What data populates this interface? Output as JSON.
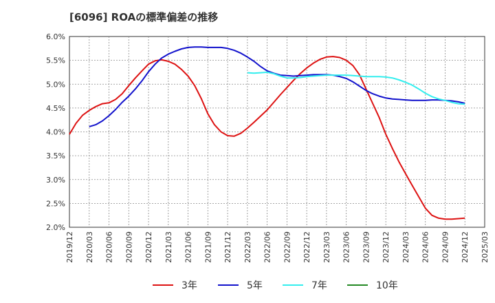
{
  "chart_data": {
    "type": "line",
    "title": "[6096]  ROAの標準偏差の推移",
    "xlabel": "",
    "ylabel": "",
    "ylim": [
      2.0,
      6.0
    ],
    "yticks": [
      "6.0%",
      "5.5%",
      "5.0%",
      "4.5%",
      "4.0%",
      "3.5%",
      "3.0%",
      "2.5%",
      "2.0%"
    ],
    "xticks": [
      "2019/12",
      "2020/03",
      "2020/06",
      "2020/09",
      "2020/12",
      "2021/03",
      "2021/06",
      "2021/09",
      "2021/12",
      "2022/03",
      "2022/06",
      "2022/09",
      "2022/12",
      "2023/03",
      "2023/06",
      "2023/09",
      "2023/12",
      "2024/03",
      "2024/06",
      "2024/09",
      "2024/12",
      "2025/03"
    ],
    "grid": true,
    "legend_position": "bottom",
    "series": [
      {
        "name": "3年",
        "color": "#dd1111",
        "points": [
          [
            "2019/12",
            3.95
          ],
          [
            "2020/01",
            4.18
          ],
          [
            "2020/02",
            4.35
          ],
          [
            "2020/03",
            4.45
          ],
          [
            "2020/04",
            4.53
          ],
          [
            "2020/05",
            4.59
          ],
          [
            "2020/06",
            4.61
          ],
          [
            "2020/07",
            4.68
          ],
          [
            "2020/08",
            4.8
          ],
          [
            "2020/09",
            4.97
          ],
          [
            "2020/10",
            5.13
          ],
          [
            "2020/11",
            5.28
          ],
          [
            "2020/12",
            5.42
          ],
          [
            "2021/01",
            5.49
          ],
          [
            "2021/02",
            5.51
          ],
          [
            "2021/03",
            5.48
          ],
          [
            "2021/04",
            5.42
          ],
          [
            "2021/05",
            5.31
          ],
          [
            "2021/06",
            5.17
          ],
          [
            "2021/07",
            4.97
          ],
          [
            "2021/08",
            4.7
          ],
          [
            "2021/09",
            4.38
          ],
          [
            "2021/10",
            4.15
          ],
          [
            "2021/11",
            4.0
          ],
          [
            "2021/12",
            3.92
          ],
          [
            "2022/01",
            3.91
          ],
          [
            "2022/02",
            3.97
          ],
          [
            "2022/03",
            4.08
          ],
          [
            "2022/04",
            4.2
          ],
          [
            "2022/05",
            4.33
          ],
          [
            "2022/06",
            4.46
          ],
          [
            "2022/07",
            4.62
          ],
          [
            "2022/08",
            4.78
          ],
          [
            "2022/09",
            4.93
          ],
          [
            "2022/10",
            5.08
          ],
          [
            "2022/11",
            5.22
          ],
          [
            "2022/12",
            5.34
          ],
          [
            "2023/01",
            5.44
          ],
          [
            "2023/02",
            5.52
          ],
          [
            "2023/03",
            5.57
          ],
          [
            "2023/04",
            5.58
          ],
          [
            "2023/05",
            5.56
          ],
          [
            "2023/06",
            5.5
          ],
          [
            "2023/07",
            5.39
          ],
          [
            "2023/08",
            5.2
          ],
          [
            "2023/09",
            4.9
          ],
          [
            "2023/10",
            4.6
          ],
          [
            "2023/11",
            4.3
          ],
          [
            "2023/12",
            3.95
          ],
          [
            "2024/01",
            3.65
          ],
          [
            "2024/02",
            3.37
          ],
          [
            "2024/03",
            3.12
          ],
          [
            "2024/04",
            2.88
          ],
          [
            "2024/05",
            2.64
          ],
          [
            "2024/06",
            2.4
          ],
          [
            "2024/07",
            2.25
          ],
          [
            "2024/08",
            2.19
          ],
          [
            "2024/09",
            2.17
          ],
          [
            "2024/10",
            2.17
          ],
          [
            "2024/11",
            2.18
          ],
          [
            "2024/12",
            2.19
          ]
        ]
      },
      {
        "name": "5年",
        "color": "#1111cc",
        "points": [
          [
            "2020/03",
            4.11
          ],
          [
            "2020/04",
            4.15
          ],
          [
            "2020/05",
            4.23
          ],
          [
            "2020/06",
            4.34
          ],
          [
            "2020/07",
            4.47
          ],
          [
            "2020/08",
            4.62
          ],
          [
            "2020/09",
            4.75
          ],
          [
            "2020/10",
            4.9
          ],
          [
            "2020/11",
            5.07
          ],
          [
            "2020/12",
            5.26
          ],
          [
            "2021/01",
            5.42
          ],
          [
            "2021/02",
            5.55
          ],
          [
            "2021/03",
            5.63
          ],
          [
            "2021/04",
            5.69
          ],
          [
            "2021/05",
            5.74
          ],
          [
            "2021/06",
            5.77
          ],
          [
            "2021/07",
            5.78
          ],
          [
            "2021/08",
            5.78
          ],
          [
            "2021/09",
            5.77
          ],
          [
            "2021/10",
            5.77
          ],
          [
            "2021/11",
            5.77
          ],
          [
            "2021/12",
            5.75
          ],
          [
            "2022/01",
            5.71
          ],
          [
            "2022/02",
            5.65
          ],
          [
            "2022/03",
            5.57
          ],
          [
            "2022/04",
            5.48
          ],
          [
            "2022/05",
            5.37
          ],
          [
            "2022/06",
            5.28
          ],
          [
            "2022/07",
            5.23
          ],
          [
            "2022/08",
            5.19
          ],
          [
            "2022/09",
            5.18
          ],
          [
            "2022/10",
            5.17
          ],
          [
            "2022/11",
            5.18
          ],
          [
            "2022/12",
            5.19
          ],
          [
            "2023/01",
            5.2
          ],
          [
            "2023/02",
            5.2
          ],
          [
            "2023/03",
            5.2
          ],
          [
            "2023/04",
            5.19
          ],
          [
            "2023/05",
            5.16
          ],
          [
            "2023/06",
            5.12
          ],
          [
            "2023/07",
            5.05
          ],
          [
            "2023/08",
            4.96
          ],
          [
            "2023/09",
            4.87
          ],
          [
            "2023/10",
            4.8
          ],
          [
            "2023/11",
            4.75
          ],
          [
            "2023/12",
            4.71
          ],
          [
            "2024/01",
            4.69
          ],
          [
            "2024/02",
            4.68
          ],
          [
            "2024/03",
            4.67
          ],
          [
            "2024/04",
            4.66
          ],
          [
            "2024/05",
            4.66
          ],
          [
            "2024/06",
            4.66
          ],
          [
            "2024/07",
            4.67
          ],
          [
            "2024/08",
            4.67
          ],
          [
            "2024/09",
            4.66
          ],
          [
            "2024/10",
            4.65
          ],
          [
            "2024/11",
            4.63
          ],
          [
            "2024/12",
            4.6
          ]
        ]
      },
      {
        "name": "7年",
        "color": "#33eeee",
        "points": [
          [
            "2022/03",
            5.24
          ],
          [
            "2022/04",
            5.23
          ],
          [
            "2022/05",
            5.24
          ],
          [
            "2022/06",
            5.25
          ],
          [
            "2022/07",
            5.22
          ],
          [
            "2022/08",
            5.17
          ],
          [
            "2022/09",
            5.13
          ],
          [
            "2022/10",
            5.13
          ],
          [
            "2022/11",
            5.14
          ],
          [
            "2022/12",
            5.16
          ],
          [
            "2023/01",
            5.17
          ],
          [
            "2023/02",
            5.18
          ],
          [
            "2023/03",
            5.19
          ],
          [
            "2023/04",
            5.19
          ],
          [
            "2023/05",
            5.19
          ],
          [
            "2023/06",
            5.19
          ],
          [
            "2023/07",
            5.18
          ],
          [
            "2023/08",
            5.17
          ],
          [
            "2023/09",
            5.16
          ],
          [
            "2023/10",
            5.16
          ],
          [
            "2023/11",
            5.16
          ],
          [
            "2023/12",
            5.15
          ],
          [
            "2024/01",
            5.13
          ],
          [
            "2024/02",
            5.09
          ],
          [
            "2024/03",
            5.04
          ],
          [
            "2024/04",
            4.98
          ],
          [
            "2024/05",
            4.9
          ],
          [
            "2024/06",
            4.81
          ],
          [
            "2024/07",
            4.74
          ],
          [
            "2024/08",
            4.69
          ],
          [
            "2024/09",
            4.66
          ],
          [
            "2024/10",
            4.62
          ],
          [
            "2024/11",
            4.59
          ],
          [
            "2024/12",
            4.58
          ]
        ]
      },
      {
        "name": "10年",
        "color": "#228822",
        "points": []
      }
    ]
  }
}
